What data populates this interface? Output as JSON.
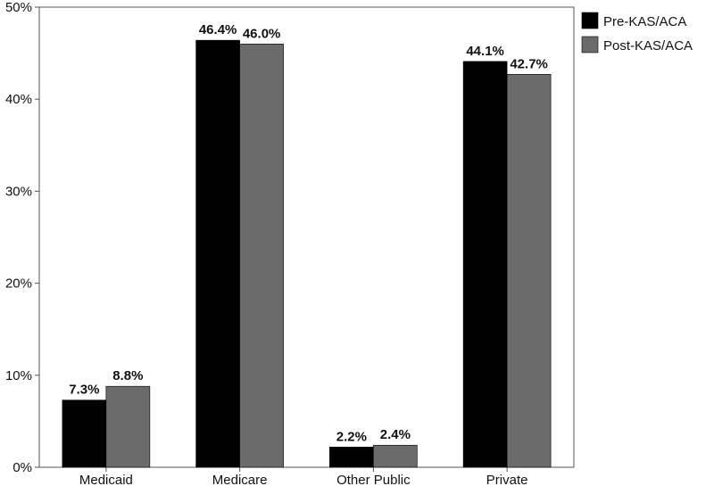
{
  "chart_data": {
    "type": "bar",
    "categories": [
      "Medicaid",
      "Medicare",
      "Other Public",
      "Private"
    ],
    "series": [
      {
        "name": "Pre-KAS/ACA",
        "color": "#000000",
        "values": [
          7.3,
          46.4,
          2.2,
          44.1
        ],
        "labels": [
          "7.3%",
          "46.4%",
          "2.2%",
          "44.1%"
        ]
      },
      {
        "name": "Post-KAS/ACA",
        "color": "#6b6b6b",
        "values": [
          8.8,
          46.0,
          2.4,
          42.7
        ],
        "labels": [
          "8.8%",
          "46.0%",
          "2.4%",
          "42.7%"
        ]
      }
    ],
    "ylim": [
      0,
      50
    ],
    "yticks": [
      {
        "value": 0,
        "label": "0%"
      },
      {
        "value": 10,
        "label": "10%"
      },
      {
        "value": 20,
        "label": "20%"
      },
      {
        "value": 30,
        "label": "30%"
      },
      {
        "value": 40,
        "label": "40%"
      },
      {
        "value": 50,
        "label": "50%"
      }
    ],
    "grid": false,
    "legend_position": "top-right"
  }
}
